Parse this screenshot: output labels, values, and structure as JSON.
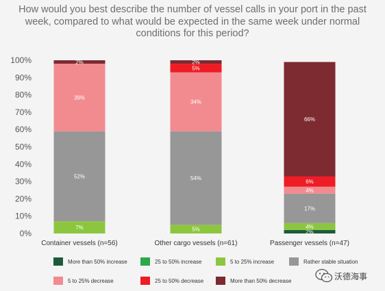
{
  "chart_data": {
    "type": "bar",
    "stacked": true,
    "title": "How would you best describe the number of vessel calls in your port in the past week, compared to what would be expected in the same week under normal conditions for this period?",
    "categories": [
      "Container vessels (n=56)",
      "Other cargo vessels (n=61)",
      "Passenger vessels (n=47)"
    ],
    "ylim": [
      0,
      100
    ],
    "yticks": [
      "0%",
      "10%",
      "20%",
      "30%",
      "40%",
      "50%",
      "60%",
      "70%",
      "80%",
      "90%",
      "100%"
    ],
    "grid": false,
    "legend_position": "bottom",
    "series": [
      {
        "name": "More than 50% increase",
        "color": "#1e5a3a",
        "values": [
          0,
          0,
          2
        ],
        "labels": [
          "",
          "",
          "2%"
        ]
      },
      {
        "name": "25 to 50% increase",
        "color": "#2aa84a",
        "values": [
          0,
          0,
          0
        ],
        "labels": [
          "",
          "",
          ""
        ]
      },
      {
        "name": "5 to 25% increase",
        "color": "#8cc63f",
        "values": [
          7,
          5,
          4
        ],
        "labels": [
          "7%",
          "5%",
          "4%"
        ]
      },
      {
        "name": "Rather stable situation",
        "color": "#979797",
        "values": [
          52,
          54,
          17
        ],
        "labels": [
          "52%",
          "54%",
          "17%"
        ]
      },
      {
        "name": "5 to 25% decrease",
        "color": "#f28b90",
        "values": [
          39,
          34,
          4
        ],
        "labels": [
          "39%",
          "34%",
          "4%"
        ]
      },
      {
        "name": "25 to 50% decrease",
        "color": "#ee1c25",
        "values": [
          0,
          5,
          6
        ],
        "labels": [
          "",
          "5%",
          "6%"
        ]
      },
      {
        "name": "More than 50% decrease",
        "color": "#7d2a31",
        "values": [
          2,
          2,
          66
        ],
        "labels": [
          "2%",
          "2%",
          "66%"
        ]
      }
    ]
  },
  "watermark": {
    "text": "沃德海事",
    "icon": "wechat-icon"
  }
}
